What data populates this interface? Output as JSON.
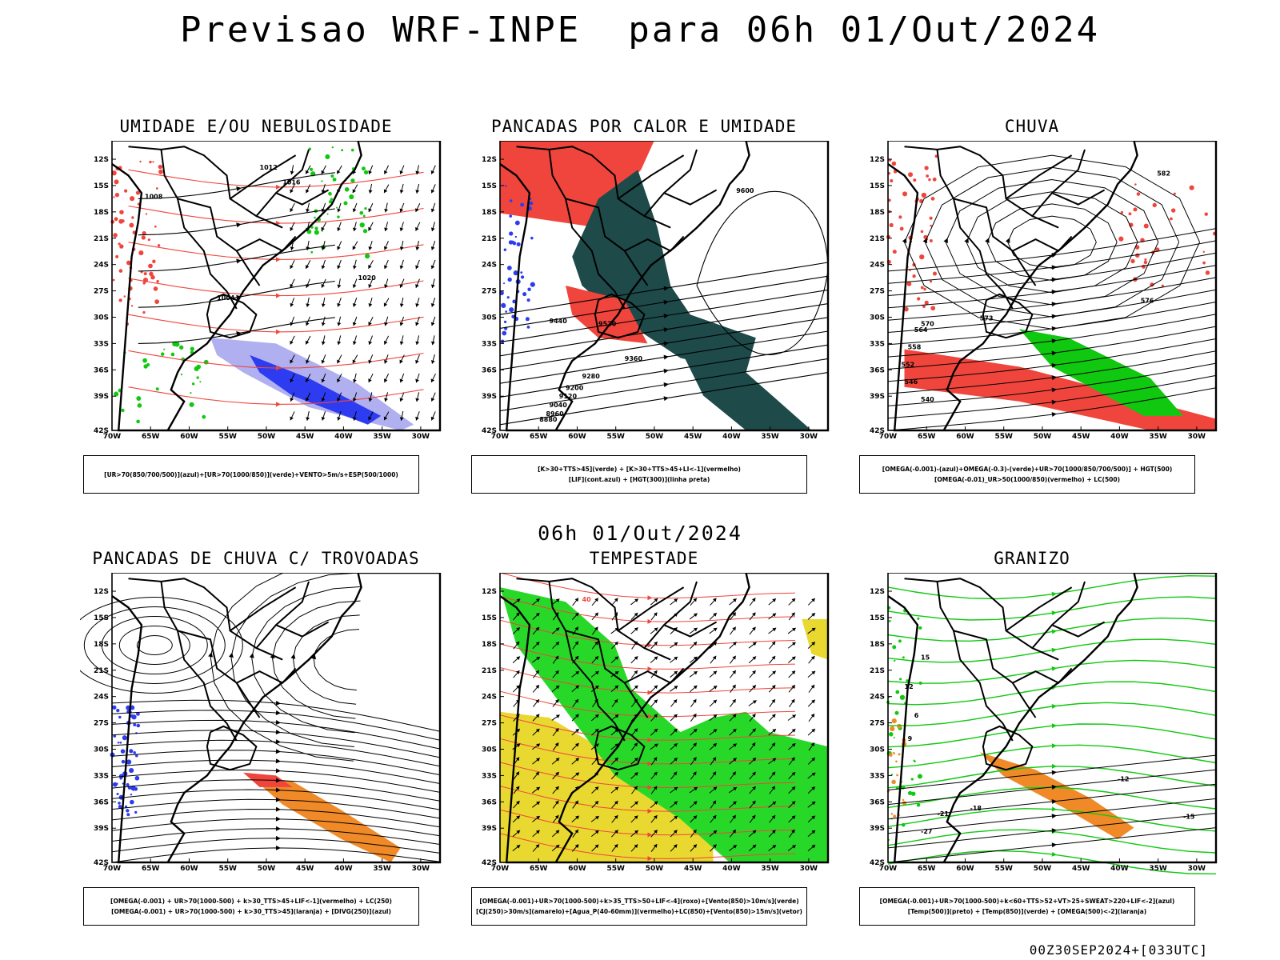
{
  "header": {
    "title": "Previsao WRF-INPE  para 06h 01/Out/2024"
  },
  "mid_title": "06h 01/Out/2024",
  "footer": "00Z30SEP2024+[033UTC]",
  "axes": {
    "lat_labels": [
      "12S",
      "15S",
      "18S",
      "21S",
      "24S",
      "27S",
      "30S",
      "33S",
      "36S",
      "39S",
      "42S"
    ],
    "lon_labels": [
      "70W",
      "65W",
      "60W",
      "55W",
      "50W",
      "45W",
      "40W",
      "35W",
      "30W"
    ]
  },
  "colors": {
    "red": "#f0453c",
    "blue": "#2d3cf0",
    "green": "#10c810",
    "dark_teal": "#1e4a4a",
    "yellow": "#e8d830",
    "orange": "#f08a28",
    "lavender": "#b0b0f0",
    "bright_green": "#28d828"
  },
  "panels": [
    {
      "title": "UMIDADE E/OU NEBULOSIDADE",
      "legend": [
        "[UR>70(850/700/500)](azul)+[UR>70(1000/850)](verde)+VENTO>5m/s+ESP(500/1000)"
      ],
      "contour_labels": [
        "1008",
        "1012",
        "1016",
        "1004",
        "1020"
      ]
    },
    {
      "title": "PANCADAS POR CALOR E UMIDADE",
      "legend": [
        "[K>30+TTS>45](verde) + [K>30+TTS>45+LI<-1](vermelho)",
        "[LIF](cont.azul) + [HGT(300)](linha preta)"
      ],
      "contour_labels": [
        "9600",
        "9520",
        "9440",
        "9360",
        "9280",
        "9200",
        "9120",
        "9040",
        "8960",
        "8880"
      ]
    },
    {
      "title": "CHUVA",
      "legend": [
        "[OMEGA(-0.001)-(azul)+OMEGA(-0.3)-(verde)+UR>70(1000/850/700/500)] + HGT(500)",
        "[OMEGA(-0.01)_UR>50(1000/850)(vermelho) + LC(500)"
      ],
      "contour_labels": [
        "582",
        "576",
        "573",
        "570",
        "564",
        "558",
        "552",
        "546",
        "540"
      ]
    },
    {
      "title": "PANCADAS DE CHUVA C/ TROVOADAS",
      "legend": [
        "[OMEGA(-0.001) + UR>70(1000-500) + k>30_TTS>45+LIF<-1](vermelho) + LC(250)",
        "[OMEGA(-0.001) + UR>70(1000-500) + k>30_TTS>45](laranja) + [DIVG(250)](azul)"
      ],
      "contour_labels": []
    },
    {
      "title": "TEMPESTADE",
      "legend": [
        "[OMEGA(-0.001)+UR>70(1000-500)+k>35_TTS>50+LIF<-4](roxo)+[Vento(850)>10m/s](verde)",
        "[CJ(250)>30m/s](amarelo)+[Agua_P(40-60mm)](vermelho)+LC(850)+[Vento(850)>15m/s](vetor)"
      ],
      "contour_labels": [
        "40"
      ]
    },
    {
      "title": "GRANIZO",
      "legend": [
        "[OMEGA(-0.001)+UR>70(1000-500)+k<60+TTS>52+VT>25+SWEAT>220+LIF<-2](azul)",
        "[Temp(500)](preto) + [Temp(850)](verde) + [OMEGA(500)<-2](laranja)"
      ],
      "contour_labels": [
        "-12",
        "-15",
        "-18",
        "-21",
        "-27",
        "6",
        "9",
        "12",
        "15"
      ]
    }
  ]
}
